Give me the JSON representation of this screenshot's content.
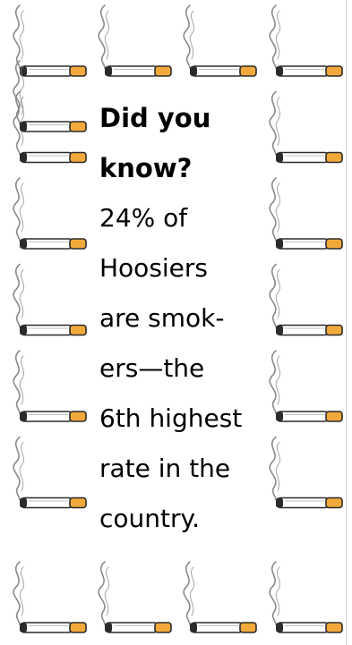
{
  "flyer": {
    "headline_line1": "Did you",
    "headline_line2": "know?",
    "body_lines": [
      "24% of",
      "Hoosiers",
      "are smok-",
      "ers—the",
      "6th highest",
      "rate in the",
      "country."
    ]
  },
  "border": {
    "icon": "cigarette-icon",
    "colors": {
      "filter": "#f2a93b",
      "paper": "#ffffff",
      "ash": "#2b2b2b",
      "smoke": "#8a8a8a"
    }
  }
}
